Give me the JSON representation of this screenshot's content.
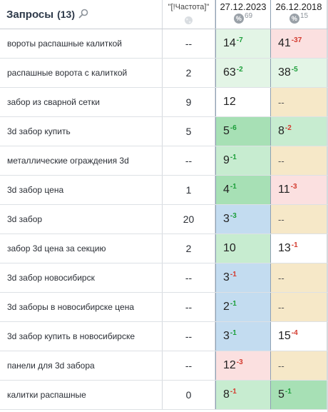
{
  "header": {
    "title": "Запросы",
    "count": "(13)",
    "freq_title": "\"[!Частота]\"",
    "dates": [
      {
        "date": "27.12.2023",
        "visibility": "69"
      },
      {
        "date": "26.12.2018",
        "visibility": "15"
      }
    ]
  },
  "rows": [
    {
      "query": "вороты распашные калиткой",
      "freq": "--",
      "d1": {
        "pos": "14",
        "delta": "-7",
        "dir": "up",
        "bg": "green-light"
      },
      "d2": {
        "pos": "41",
        "delta": "-37",
        "dir": "down",
        "bg": "red"
      }
    },
    {
      "query": "распашные ворота с калиткой",
      "freq": "2",
      "d1": {
        "pos": "63",
        "delta": "-2",
        "dir": "up",
        "bg": "green-light"
      },
      "d2": {
        "pos": "38",
        "delta": "-5",
        "dir": "up",
        "bg": "green-light"
      }
    },
    {
      "query": "забор из сварной сетки",
      "freq": "9",
      "d1": {
        "pos": "12",
        "delta": "",
        "dir": "",
        "bg": "white"
      },
      "d2": {
        "pos": "--",
        "delta": "",
        "dir": "",
        "bg": "beige"
      }
    },
    {
      "query": "3d забор купить",
      "freq": "5",
      "d1": {
        "pos": "5",
        "delta": "-6",
        "dir": "up",
        "bg": "green-dark"
      },
      "d2": {
        "pos": "8",
        "delta": "-2",
        "dir": "down",
        "bg": "green"
      }
    },
    {
      "query": "металлические ограждения 3d",
      "freq": "--",
      "d1": {
        "pos": "9",
        "delta": "-1",
        "dir": "up",
        "bg": "green"
      },
      "d2": {
        "pos": "--",
        "delta": "",
        "dir": "",
        "bg": "beige"
      }
    },
    {
      "query": "3d забор цена",
      "freq": "1",
      "d1": {
        "pos": "4",
        "delta": "-1",
        "dir": "up",
        "bg": "green-dark"
      },
      "d2": {
        "pos": "11",
        "delta": "-3",
        "dir": "down",
        "bg": "red"
      }
    },
    {
      "query": "3d забор",
      "freq": "20",
      "d1": {
        "pos": "3",
        "delta": "-3",
        "dir": "up",
        "bg": "blue"
      },
      "d2": {
        "pos": "--",
        "delta": "",
        "dir": "",
        "bg": "beige"
      }
    },
    {
      "query": "забор 3d цена за секцию",
      "freq": "2",
      "d1": {
        "pos": "10",
        "delta": "",
        "dir": "",
        "bg": "green"
      },
      "d2": {
        "pos": "13",
        "delta": "-1",
        "dir": "down",
        "bg": "white"
      }
    },
    {
      "query": "3d забор новосибирск",
      "freq": "--",
      "d1": {
        "pos": "3",
        "delta": "-1",
        "dir": "down",
        "bg": "blue"
      },
      "d2": {
        "pos": "--",
        "delta": "",
        "dir": "",
        "bg": "beige"
      }
    },
    {
      "query": "3d заборы в новосибирске цена",
      "freq": "--",
      "d1": {
        "pos": "2",
        "delta": "-1",
        "dir": "up",
        "bg": "blue"
      },
      "d2": {
        "pos": "--",
        "delta": "",
        "dir": "",
        "bg": "beige"
      }
    },
    {
      "query": "3d забор купить в новосибирске",
      "freq": "--",
      "d1": {
        "pos": "3",
        "delta": "-1",
        "dir": "up",
        "bg": "blue"
      },
      "d2": {
        "pos": "15",
        "delta": "-4",
        "dir": "down",
        "bg": "white"
      }
    },
    {
      "query": "панели для 3d забора",
      "freq": "--",
      "d1": {
        "pos": "12",
        "delta": "-3",
        "dir": "down",
        "bg": "red"
      },
      "d2": {
        "pos": "--",
        "delta": "",
        "dir": "",
        "bg": "beige"
      }
    },
    {
      "query": "калитки распашные",
      "freq": "0",
      "d1": {
        "pos": "8",
        "delta": "-1",
        "dir": "down",
        "bg": "green"
      },
      "d2": {
        "pos": "5",
        "delta": "-1",
        "dir": "up",
        "bg": "green-dark"
      }
    }
  ]
}
